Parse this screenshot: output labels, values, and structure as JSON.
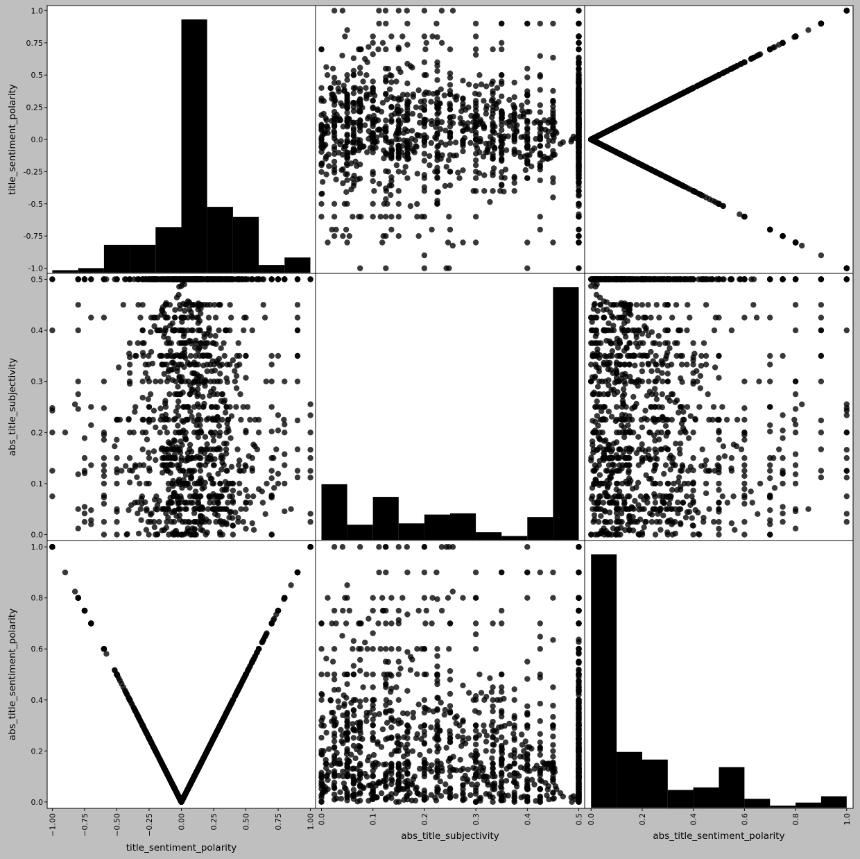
{
  "figure": {
    "background": "#bfbfbf",
    "panel_background": "#ffffff",
    "mark_color": "#000000"
  },
  "chart_data": {
    "type": "scatter_matrix",
    "variables": [
      "title_sentiment_polarity",
      "abs_title_subjectivity",
      "abs_title_sentiment_polarity"
    ],
    "axis_labels": {
      "title_sentiment_polarity": "title_sentiment_polarity",
      "abs_title_subjectivity": "abs_title_subjectivity",
      "abs_title_sentiment_polarity": "abs_title_sentiment_polarity"
    },
    "ranges": {
      "title_sentiment_polarity": [
        -1.04,
        1.04
      ],
      "abs_title_subjectivity": [
        -0.0115,
        0.5115
      ],
      "abs_title_sentiment_polarity": [
        -0.025,
        1.025
      ]
    },
    "ticks": {
      "title_sentiment_polarity": {
        "values": [
          -1.0,
          -0.75,
          -0.5,
          -0.25,
          0.0,
          0.25,
          0.5,
          0.75,
          1.0
        ],
        "x_labels": [
          "−1.00",
          "−0.75",
          "−0.50",
          "−0.25",
          "0.00",
          "0.25",
          "0.50",
          "0.75",
          "1.00"
        ],
        "y_labels": [
          "-1.0",
          "-0.75",
          "-0.5",
          "-0.25",
          "0.0",
          "0.25",
          "0.5",
          "0.75",
          "1.0"
        ]
      },
      "abs_title_subjectivity": {
        "values": [
          0.0,
          0.1,
          0.2,
          0.3,
          0.4,
          0.5
        ],
        "x_labels": [
          "0.0",
          "0.1",
          "0.2",
          "0.3",
          "0.4",
          "0.5"
        ],
        "y_labels": [
          "0.0",
          "0.1",
          "0.2",
          "0.3",
          "0.4",
          "0.5"
        ]
      },
      "abs_title_sentiment_polarity": {
        "values": [
          0.0,
          0.2,
          0.4,
          0.6,
          0.8,
          1.0
        ],
        "x_labels": [
          "0.0",
          "0.2",
          "0.4",
          "0.6",
          "0.8",
          "1.0"
        ],
        "y_labels": [
          "0.0",
          "0.2",
          "0.4",
          "0.6",
          "0.8",
          "1.0"
        ]
      }
    },
    "histograms": [
      {
        "variable": "title_sentiment_polarity",
        "bin_edges": [
          -1.0,
          -0.8,
          -0.6,
          -0.4,
          -0.2,
          0.0,
          0.2,
          0.4,
          0.6,
          0.8,
          1.0
        ],
        "relative_heights": [
          0.01,
          0.018,
          0.11,
          0.11,
          0.18,
          1.0,
          0.26,
          0.22,
          0.03,
          0.06
        ]
      },
      {
        "variable": "abs_title_subjectivity",
        "bin_edges": [
          0.0,
          0.05,
          0.1,
          0.15,
          0.2,
          0.25,
          0.3,
          0.35,
          0.4,
          0.45,
          0.5
        ],
        "relative_heights": [
          0.22,
          0.06,
          0.17,
          0.065,
          0.1,
          0.105,
          0.03,
          0.015,
          0.09,
          1.0
        ]
      },
      {
        "variable": "abs_title_sentiment_polarity",
        "bin_edges": [
          0.0,
          0.1,
          0.2,
          0.3,
          0.4,
          0.5,
          0.6,
          0.7,
          0.8,
          0.9,
          1.0
        ],
        "relative_heights": [
          1.0,
          0.22,
          0.19,
          0.07,
          0.08,
          0.16,
          0.035,
          0.008,
          0.02,
          0.045
        ]
      }
    ],
    "scatter_style": {
      "color": "#000000",
      "opacity": 0.78
    },
    "scatter_sample": [
      [
        0.0,
        0.0
      ],
      [
        0.0,
        0.5
      ],
      [
        0.05,
        0.5
      ],
      [
        -0.1,
        0.5
      ],
      [
        0.1,
        0.45
      ],
      [
        0.13,
        0.4
      ],
      [
        0.2,
        0.35
      ],
      [
        0.25,
        0.5
      ],
      [
        -0.2,
        0.3
      ],
      [
        -0.25,
        0.25
      ],
      [
        0.3,
        0.3
      ],
      [
        0.35,
        0.25
      ],
      [
        0.5,
        0.2
      ],
      [
        0.6,
        0.2
      ],
      [
        0.8,
        0.2
      ],
      [
        1.0,
        0.2
      ],
      [
        -0.5,
        0.1
      ],
      [
        -0.4,
        0.15
      ],
      [
        -0.3,
        0.2
      ],
      [
        -0.15,
        0.05
      ],
      [
        0.15,
        0.1
      ],
      [
        0.25,
        0.05
      ],
      [
        0.4,
        0.1
      ],
      [
        0.5,
        0.05
      ],
      [
        -0.6,
        0.2
      ],
      [
        -0.7,
        0.25
      ],
      [
        -0.8,
        0.3
      ],
      [
        -0.9,
        0.2
      ],
      [
        -1.0,
        0.5
      ],
      [
        1.0,
        0.5
      ],
      [
        0.9,
        0.4
      ],
      [
        0.7,
        0.3
      ],
      [
        0.8,
        0.1
      ],
      [
        0.85,
        0.05
      ],
      [
        0.7,
        0.0
      ],
      [
        -0.6,
        0.0
      ],
      [
        -0.5,
        0.05
      ],
      [
        0.1,
        0.2
      ],
      [
        0.2,
        0.15
      ],
      [
        -0.1,
        0.1
      ],
      [
        0.0,
        0.3
      ],
      [
        0.05,
        0.25
      ],
      [
        -0.05,
        0.4
      ],
      [
        0.3,
        0.45
      ],
      [
        0.45,
        0.35
      ],
      [
        -0.35,
        0.35
      ],
      [
        -0.45,
        0.45
      ],
      [
        0.55,
        0.4
      ]
    ]
  }
}
